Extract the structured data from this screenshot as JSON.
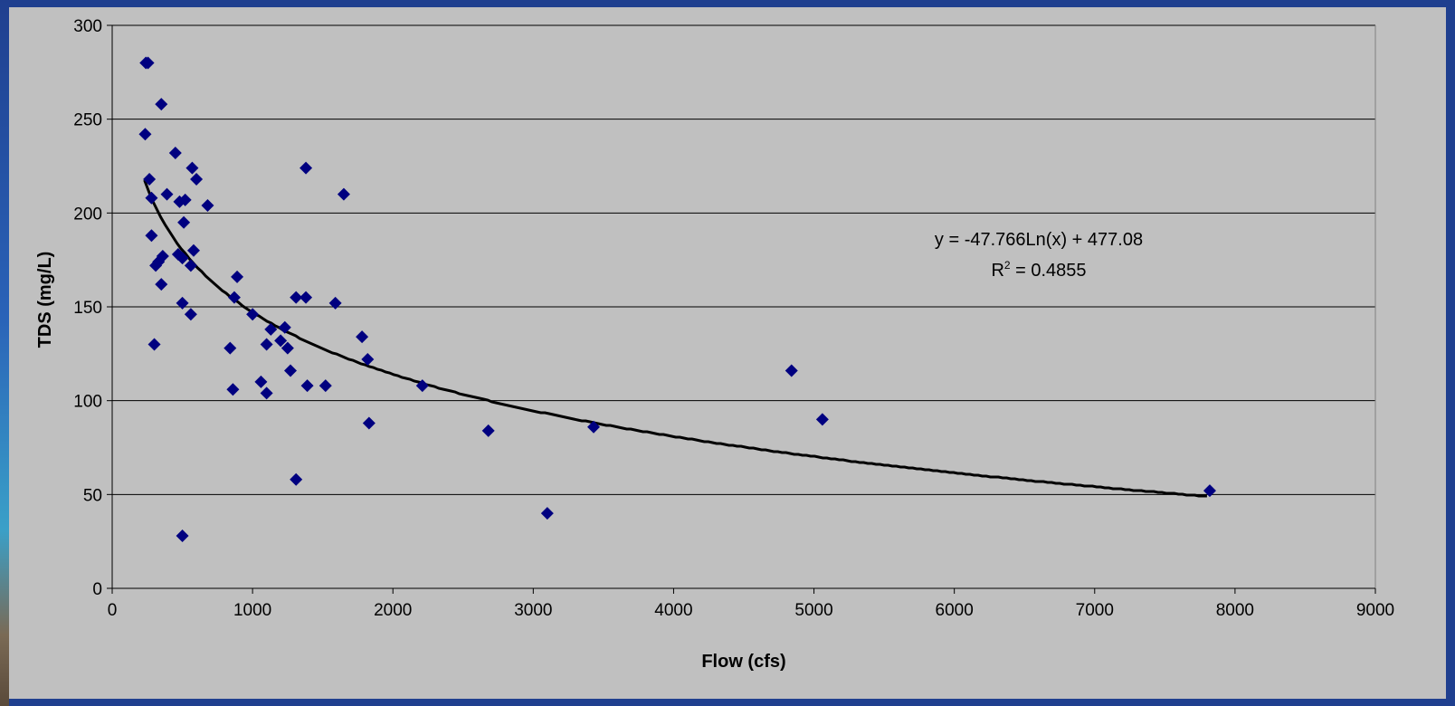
{
  "chart_data": {
    "type": "scatter",
    "xlabel": "Flow (cfs)",
    "ylabel": "TDS (mg/L)",
    "xlim": [
      0,
      9000
    ],
    "ylim": [
      0,
      300
    ],
    "x_ticks": [
      0,
      1000,
      2000,
      3000,
      4000,
      5000,
      6000,
      7000,
      8000,
      9000
    ],
    "y_ticks": [
      0,
      50,
      100,
      150,
      200,
      250,
      300
    ],
    "grid": "horizontal",
    "legend": "none",
    "colors": {
      "points": "#000080",
      "trendline": "#000000",
      "plot_bg": "#c0c0c0",
      "frame": "#1f3f8f"
    },
    "points": [
      [
        240,
        280
      ],
      [
        255,
        280
      ],
      [
        235,
        242
      ],
      [
        350,
        258
      ],
      [
        265,
        218
      ],
      [
        280,
        208
      ],
      [
        450,
        232
      ],
      [
        570,
        224
      ],
      [
        600,
        218
      ],
      [
        280,
        188
      ],
      [
        310,
        172
      ],
      [
        330,
        174
      ],
      [
        360,
        177
      ],
      [
        350,
        162
      ],
      [
        300,
        130
      ],
      [
        390,
        210
      ],
      [
        480,
        206
      ],
      [
        520,
        207
      ],
      [
        510,
        195
      ],
      [
        470,
        178
      ],
      [
        500,
        176
      ],
      [
        580,
        180
      ],
      [
        560,
        172
      ],
      [
        680,
        204
      ],
      [
        500,
        152
      ],
      [
        560,
        146
      ],
      [
        500,
        28
      ],
      [
        840,
        128
      ],
      [
        870,
        155
      ],
      [
        890,
        166
      ],
      [
        860,
        106
      ],
      [
        1000,
        146
      ],
      [
        1060,
        110
      ],
      [
        1100,
        104
      ],
      [
        1100,
        130
      ],
      [
        1130,
        138
      ],
      [
        1200,
        132
      ],
      [
        1230,
        139
      ],
      [
        1250,
        128
      ],
      [
        1270,
        116
      ],
      [
        1310,
        155
      ],
      [
        1380,
        155
      ],
      [
        1310,
        58
      ],
      [
        1380,
        224
      ],
      [
        1390,
        108
      ],
      [
        1520,
        108
      ],
      [
        1590,
        152
      ],
      [
        1650,
        210
      ],
      [
        1780,
        134
      ],
      [
        1820,
        122
      ],
      [
        1830,
        88
      ],
      [
        2210,
        108
      ],
      [
        2680,
        84
      ],
      [
        3100,
        40
      ],
      [
        3430,
        86
      ],
      [
        4840,
        116
      ],
      [
        5060,
        90
      ],
      [
        7820,
        52
      ]
    ],
    "trendline": {
      "type": "logarithmic",
      "a": -47.766,
      "b": 477.08,
      "x_range": [
        230,
        7800
      ]
    },
    "annotations": [
      "y = -47.766Ln(x) + 477.08",
      "R",
      "2",
      " = 0.4855"
    ]
  }
}
